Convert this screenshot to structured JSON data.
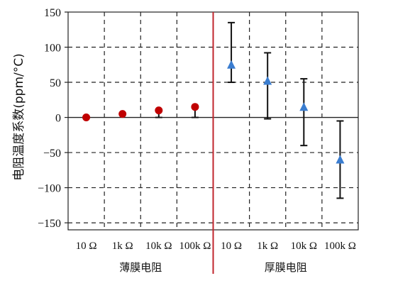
{
  "chart_data": {
    "type": "scatter",
    "ylabel": "电阻温度系数(ppm/°C)",
    "xlabel": "",
    "ylim": [
      -160,
      150
    ],
    "yticks": [
      150,
      100,
      50,
      0,
      -50,
      -100,
      -150
    ],
    "grid": true,
    "legend": "none",
    "categories": [
      "10 Ω",
      "1k Ω",
      "10k Ω",
      "100k Ω",
      "10 Ω",
      "1k Ω",
      "10k Ω",
      "100k Ω"
    ],
    "groups": [
      {
        "label": "薄膜电阻",
        "category_indices": [
          0,
          1,
          2,
          3
        ]
      },
      {
        "label": "厚膜电阻",
        "category_indices": [
          4,
          5,
          6,
          7
        ]
      }
    ],
    "series": [
      {
        "marker": "circle",
        "color": "#c00000",
        "points": [
          {
            "category": 0,
            "value": 0,
            "err_low": 0,
            "err_high": 0
          },
          {
            "category": 1,
            "value": 5,
            "err_low": 5,
            "err_high": 5
          },
          {
            "category": 2,
            "value": 10,
            "err_low": 0,
            "err_high": 10
          },
          {
            "category": 3,
            "value": 15,
            "err_low": 0,
            "err_high": 15
          }
        ]
      },
      {
        "marker": "triangle",
        "color": "#3a7dd0",
        "points": [
          {
            "category": 4,
            "value": 75,
            "err_low": 50,
            "err_high": 135
          },
          {
            "category": 5,
            "value": 52,
            "err_low": -2,
            "err_high": 92
          },
          {
            "category": 6,
            "value": 15,
            "err_low": -40,
            "err_high": 55
          },
          {
            "category": 7,
            "value": -60,
            "err_low": -115,
            "err_high": -5
          }
        ]
      }
    ],
    "divider_color": "#c0262d"
  }
}
